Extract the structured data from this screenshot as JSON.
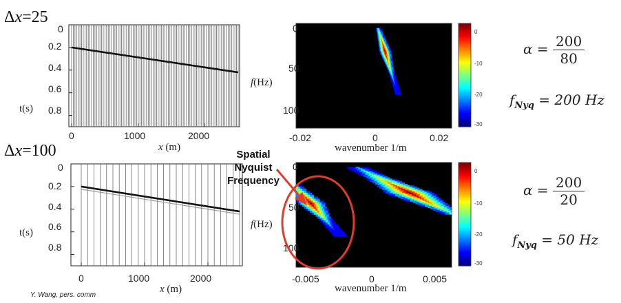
{
  "top": {
    "title": {
      "delta": "Δ",
      "var": "x",
      "value": "=25"
    },
    "seismogram": {
      "y_label": "t(s)",
      "y_ticks": [
        "0",
        "0.2",
        "0.4",
        "0.6",
        "0.8"
      ],
      "x_ticks": [
        "0",
        "1000",
        "2000"
      ],
      "x_label_var": "x",
      "x_label_unit": "(m)",
      "trace_spacing_m": 25,
      "event_t_at_x0": 0.2,
      "event_t_at_x2500": 0.42
    },
    "fk": {
      "y_label_var": "f",
      "y_label_unit": "(Hz)",
      "y_ticks": [
        "0",
        "50",
        "100"
      ],
      "x_ticks": [
        "-0.02",
        "0",
        "0.02"
      ],
      "x_label": "wavenumber 1/m",
      "colorbar_ticks": [
        "0",
        "-10",
        "-20",
        "-30"
      ]
    },
    "formula": {
      "alpha_symbol": "α",
      "alpha_num": "200",
      "alpha_den": "80",
      "fnyq_base": "f",
      "fnyq_sub": "Nyq",
      "fnyq_value": "= 200 Hz"
    }
  },
  "bottom": {
    "title": {
      "delta": "Δ",
      "var": "x",
      "value": "=100"
    },
    "seismogram": {
      "y_label": "t(s)",
      "y_ticks": [
        "0",
        "0.2",
        "0.4",
        "0.6",
        "0.8"
      ],
      "x_ticks": [
        "0",
        "1000",
        "2000"
      ],
      "x_label_var": "x",
      "x_label_unit": "(m)",
      "trace_spacing_m": 100,
      "event_t_at_x0": 0.2,
      "event_t_at_x2500": 0.42
    },
    "fk": {
      "y_label_var": "f",
      "y_label_unit": "(Hz)",
      "y_ticks": [
        "0",
        "50",
        "100"
      ],
      "x_ticks": [
        "-0.005",
        "0",
        "0.005"
      ],
      "x_label": "wavenumber 1/m",
      "colorbar_ticks": [
        "0",
        "-10",
        "-20",
        "-30"
      ]
    },
    "formula": {
      "alpha_symbol": "α",
      "alpha_num": "200",
      "alpha_den": "20",
      "fnyq_base": "f",
      "fnyq_sub": "Nyq",
      "fnyq_value": "= 50 Hz"
    }
  },
  "callout": {
    "line1": "Spatial",
    "line2": "Nyquist",
    "line3": "Frequency",
    "color": "#e03c2b"
  },
  "credit": "Y. Wang, pers. comm",
  "colors": {
    "annotation_red": "#e03c2b",
    "plot_background": "#000000"
  }
}
